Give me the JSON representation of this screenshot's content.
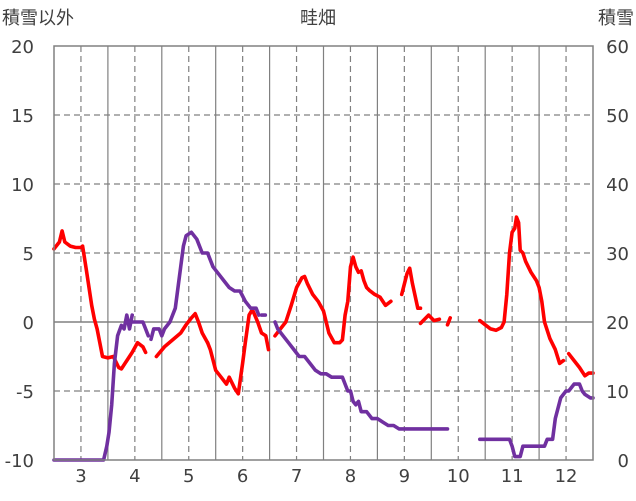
{
  "chart_data": {
    "type": "line",
    "title": "畦畑",
    "y_left_label": "積雪以外",
    "y_right_label": "積雪",
    "y_left_range": [
      -10,
      20
    ],
    "y_right_range": [
      0,
      60
    ],
    "y_left_ticks": [
      "-10",
      "-5",
      "0",
      "5",
      "10",
      "15",
      "20"
    ],
    "y_right_ticks": [
      "0",
      "10",
      "20",
      "30",
      "40",
      "50",
      "60"
    ],
    "x_range": [
      2.5,
      12.5
    ],
    "x_ticks": [
      "3",
      "4",
      "5",
      "6",
      "7",
      "8",
      "9",
      "10",
      "11",
      "12"
    ],
    "grid": true,
    "series": [
      {
        "color": "#ff0000",
        "axis": "left",
        "segments": [
          [
            [
              2.5,
              5.3
            ],
            [
              2.6,
              5.8
            ],
            [
              2.65,
              6.6
            ],
            [
              2.7,
              5.8
            ],
            [
              2.8,
              5.5
            ],
            [
              2.9,
              5.4
            ],
            [
              3.0,
              5.4
            ],
            [
              3.03,
              5.5
            ],
            [
              3.1,
              3.8
            ],
            [
              3.15,
              2.5
            ],
            [
              3.2,
              1.2
            ],
            [
              3.25,
              0.2
            ],
            [
              3.3,
              -0.5
            ],
            [
              3.35,
              -1.5
            ],
            [
              3.4,
              -2.5
            ],
            [
              3.5,
              -2.6
            ],
            [
              3.6,
              -2.5
            ],
            [
              3.7,
              -3.3
            ],
            [
              3.75,
              -3.4
            ],
            [
              3.85,
              -2.8
            ],
            [
              3.95,
              -2.2
            ],
            [
              4.05,
              -1.5
            ],
            [
              4.15,
              -1.8
            ],
            [
              4.2,
              -2.2
            ]
          ],
          [
            [
              4.4,
              -2.5
            ],
            [
              4.55,
              -1.8
            ],
            [
              4.7,
              -1.3
            ],
            [
              4.85,
              -0.8
            ],
            [
              4.95,
              -0.2
            ],
            [
              5.05,
              0.3
            ],
            [
              5.12,
              0.6
            ],
            [
              5.18,
              0.0
            ],
            [
              5.25,
              -0.8
            ],
            [
              5.35,
              -1.5
            ]
          ],
          [
            [
              5.35,
              -1.5
            ],
            [
              5.4,
              -2.0
            ],
            [
              5.5,
              -3.5
            ],
            [
              5.6,
              -4.0
            ],
            [
              5.7,
              -4.5
            ],
            [
              5.75,
              -4.0
            ],
            [
              5.85,
              -4.8
            ],
            [
              5.92,
              -5.2
            ],
            [
              6.0,
              -3.0
            ],
            [
              6.05,
              -1.5
            ],
            [
              6.12,
              0.5
            ],
            [
              6.18,
              0.9
            ],
            [
              6.28,
              0.0
            ],
            [
              6.35,
              -0.8
            ],
            [
              6.43,
              -1.0
            ],
            [
              6.48,
              -2.0
            ]
          ],
          [
            [
              6.6,
              -1.0
            ],
            [
              6.7,
              -0.5
            ],
            [
              6.8,
              0.0
            ],
            [
              6.9,
              1.2
            ],
            [
              7.0,
              2.5
            ],
            [
              7.1,
              3.2
            ],
            [
              7.15,
              3.3
            ],
            [
              7.2,
              2.8
            ],
            [
              7.3,
              2.0
            ],
            [
              7.4,
              1.5
            ],
            [
              7.5,
              0.8
            ],
            [
              7.6,
              -0.8
            ],
            [
              7.7,
              -1.5
            ],
            [
              7.8,
              -1.5
            ],
            [
              7.85,
              -1.3
            ],
            [
              7.9,
              0.5
            ],
            [
              7.95,
              1.5
            ],
            [
              8.0,
              4.0
            ],
            [
              8.05,
              4.7
            ],
            [
              8.1,
              4.0
            ],
            [
              8.15,
              3.6
            ]
          ],
          [
            [
              8.2,
              3.7
            ],
            [
              8.25,
              3.0
            ],
            [
              8.3,
              2.5
            ],
            [
              8.35,
              2.3
            ],
            [
              8.45,
              2.0
            ],
            [
              8.55,
              1.8
            ],
            [
              8.65,
              1.2
            ],
            [
              8.75,
              1.5
            ]
          ],
          [
            [
              8.95,
              2.0
            ],
            [
              9.05,
              3.5
            ],
            [
              9.1,
              3.9
            ],
            [
              9.15,
              2.8
            ],
            [
              9.25,
              1.0
            ],
            [
              9.3,
              1.0
            ]
          ],
          [
            [
              9.3,
              -0.1
            ],
            [
              9.45,
              0.5
            ],
            [
              9.55,
              0.1
            ],
            [
              9.65,
              0.2
            ]
          ],
          [
            [
              9.8,
              -0.2
            ],
            [
              9.85,
              0.3
            ]
          ],
          [
            [
              10.4,
              0.1
            ],
            [
              10.5,
              -0.2
            ],
            [
              10.6,
              -0.5
            ],
            [
              10.7,
              -0.6
            ],
            [
              10.8,
              -0.4
            ],
            [
              10.85,
              0.0
            ],
            [
              10.9,
              2.0
            ],
            [
              10.95,
              5.0
            ],
            [
              11.0,
              6.5
            ],
            [
              11.05,
              6.8
            ],
            [
              11.08,
              7.6
            ],
            [
              11.12,
              7.2
            ],
            [
              11.15,
              5.2
            ],
            [
              11.2,
              5.0
            ],
            [
              11.25,
              4.4
            ],
            [
              11.3,
              4.0
            ],
            [
              11.35,
              3.6
            ],
            [
              11.45,
              3.0
            ],
            [
              11.5,
              2.5
            ],
            [
              11.55,
              1.5
            ],
            [
              11.6,
              0.0
            ],
            [
              11.7,
              -1.2
            ],
            [
              11.8,
              -2.0
            ],
            [
              11.88,
              -3.0
            ],
            [
              11.95,
              -2.8
            ]
          ],
          [
            [
              12.05,
              -2.3
            ],
            [
              12.15,
              -2.8
            ],
            [
              12.25,
              -3.3
            ],
            [
              12.35,
              -3.9
            ],
            [
              12.42,
              -3.7
            ],
            [
              12.5,
              -3.7
            ]
          ]
        ]
      },
      {
        "color": "#7030a0",
        "axis": "right",
        "segments": [
          [
            [
              2.5,
              0
            ],
            [
              3.3,
              0
            ],
            [
              3.42,
              0
            ],
            [
              3.48,
              2
            ],
            [
              3.52,
              4
            ],
            [
              3.57,
              8
            ],
            [
              3.62,
              14
            ],
            [
              3.68,
              18
            ],
            [
              3.75,
              19.5
            ],
            [
              3.8,
              19
            ],
            [
              3.85,
              21
            ],
            [
              3.9,
              19
            ],
            [
              3.95,
              21
            ]
          ],
          [
            [
              3.95,
              20
            ],
            [
              4.05,
              20
            ],
            [
              4.15,
              20
            ],
            [
              4.2,
              19
            ],
            [
              4.25,
              18
            ]
          ],
          [
            [
              4.3,
              17.5
            ],
            [
              4.35,
              19
            ],
            [
              4.45,
              19
            ],
            [
              4.5,
              18
            ],
            [
              4.55,
              19
            ],
            [
              4.65,
              20
            ],
            [
              4.75,
              22
            ],
            [
              4.8,
              25
            ],
            [
              4.85,
              28
            ],
            [
              4.9,
              31
            ],
            [
              4.95,
              32.5
            ],
            [
              5.05,
              33
            ],
            [
              5.15,
              32
            ],
            [
              5.25,
              30
            ],
            [
              5.35,
              30
            ],
            [
              5.45,
              28
            ],
            [
              5.55,
              27
            ],
            [
              5.65,
              26
            ],
            [
              5.75,
              25
            ],
            [
              5.85,
              24.5
            ],
            [
              5.95,
              24.5
            ],
            [
              6.05,
              23
            ],
            [
              6.15,
              22
            ],
            [
              6.25,
              22
            ],
            [
              6.3,
              21
            ]
          ],
          [
            [
              6.35,
              21
            ],
            [
              6.42,
              21
            ]
          ],
          [
            [
              6.6,
              20
            ],
            [
              6.65,
              19
            ],
            [
              6.75,
              18
            ],
            [
              6.85,
              17
            ],
            [
              6.95,
              16
            ],
            [
              7.05,
              15
            ],
            [
              7.15,
              15
            ],
            [
              7.25,
              14
            ],
            [
              7.35,
              13
            ],
            [
              7.45,
              12.5
            ],
            [
              7.55,
              12.5
            ],
            [
              7.65,
              12
            ],
            [
              7.75,
              12
            ],
            [
              7.85,
              12
            ],
            [
              7.9,
              11
            ],
            [
              7.95,
              10
            ],
            [
              8.0,
              10
            ],
            [
              8.05,
              8.5
            ],
            [
              8.1,
              8
            ],
            [
              8.15,
              8.5
            ],
            [
              8.2,
              7
            ],
            [
              8.3,
              7
            ],
            [
              8.4,
              6
            ],
            [
              8.5,
              6
            ],
            [
              8.6,
              5.5
            ],
            [
              8.7,
              5
            ],
            [
              8.8,
              5
            ],
            [
              8.9,
              4.5
            ],
            [
              9.0,
              4.5
            ],
            [
              9.1,
              4.5
            ],
            [
              9.3,
              4.5
            ],
            [
              9.5,
              4.5
            ],
            [
              9.7,
              4.5
            ],
            [
              9.8,
              4.5
            ]
          ],
          [
            [
              10.4,
              3
            ],
            [
              10.6,
              3
            ],
            [
              10.8,
              3
            ],
            [
              10.95,
              3
            ],
            [
              11.0,
              2
            ],
            [
              11.05,
              0.5
            ],
            [
              11.15,
              0.5
            ],
            [
              11.2,
              2
            ],
            [
              11.3,
              2
            ],
            [
              11.4,
              2
            ],
            [
              11.5,
              2
            ],
            [
              11.6,
              2
            ],
            [
              11.65,
              3
            ],
            [
              11.75,
              3
            ],
            [
              11.8,
              6
            ],
            [
              11.9,
              9
            ],
            [
              12.0,
              10
            ],
            [
              12.05,
              10
            ],
            [
              12.15,
              11
            ],
            [
              12.25,
              11
            ],
            [
              12.3,
              10
            ],
            [
              12.35,
              9.5
            ],
            [
              12.45,
              9
            ],
            [
              12.5,
              9
            ]
          ]
        ]
      }
    ]
  }
}
